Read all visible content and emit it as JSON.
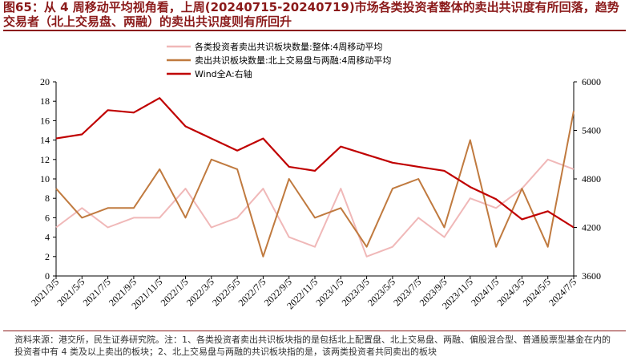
{
  "title": "图65：从 4 周移动平均视角看，上周(20240715-20240719)市场各类投资者整体的卖出共识度有所回落，趋势交易者（北上交易盘、两融）的卖出共识度则有所回升",
  "source_note": "资料来源：港交所，民生证券研究院。注：1、各类投资者卖出共识板块指的是包括北上配置盘、北上交易盘、两融、偏股混合型、普通股票型基金在内的投资者中有 4 类及以上卖出的板块；2、北上交易盘与两融的共识板块指的是，该两类投资者共同卖出的板块",
  "colors": {
    "overall": "#f0b8b8",
    "trend": "#c07a3f",
    "wind": "#c00000",
    "title": "#8b1a1a"
  },
  "chart_data": {
    "type": "line",
    "xlabel": "",
    "ylabel": "",
    "x_tick_labels": [
      "2021/3/5",
      "2021/5/5",
      "2021/7/5",
      "2021/9/5",
      "2021/11/5",
      "2022/1/5",
      "2022/3/5",
      "2022/5/5",
      "2022/7/5",
      "2022/9/5",
      "2022/11/5",
      "2023/1/5",
      "2023/3/5",
      "2023/5/5",
      "2023/7/5",
      "2023/9/5",
      "2023/11/5",
      "2024/1/5",
      "2024/3/5",
      "2024/5/5",
      "2024/7/5"
    ],
    "left_axis": {
      "ylim": [
        0,
        20
      ],
      "ticks": [
        0,
        2,
        4,
        6,
        8,
        10,
        12,
        14,
        16,
        18,
        20
      ]
    },
    "right_axis": {
      "ylim": [
        3600,
        6000
      ],
      "ticks": [
        3600,
        4200,
        4800,
        5400,
        6000
      ]
    },
    "legend": [
      {
        "label": "各类投资者卖出共识板块数量:整体:4周移动平均",
        "key": "overall"
      },
      {
        "label": "卖出共识板块数量:北上交易盘与两融:4周移动平均",
        "key": "trend"
      },
      {
        "label": "Wind全A:右轴",
        "key": "wind"
      }
    ],
    "n_points": 21,
    "series": [
      {
        "name": "各类投资者卖出共识板块数量:整体:4周移动平均",
        "axis": "left",
        "values": [
          5,
          7,
          5,
          6,
          6,
          9,
          5,
          6,
          9,
          4,
          3,
          9,
          2,
          3,
          6,
          4,
          8,
          7,
          9,
          12,
          11
        ]
      },
      {
        "name": "卖出共识板块数量:北上交易盘与两融:4周移动平均",
        "axis": "left",
        "values": [
          9,
          6,
          7,
          7,
          11,
          6,
          12,
          11,
          2,
          10,
          6,
          7,
          3,
          9,
          10,
          5,
          14,
          3,
          9,
          3,
          17
        ]
      },
      {
        "name": "Wind全A:右轴",
        "axis": "right",
        "values": [
          5300,
          5350,
          5650,
          5620,
          5800,
          5450,
          5300,
          5150,
          5300,
          4950,
          4900,
          5200,
          5100,
          5000,
          4950,
          4900,
          4700,
          4550,
          4300,
          4400,
          4200
        ]
      }
    ]
  }
}
